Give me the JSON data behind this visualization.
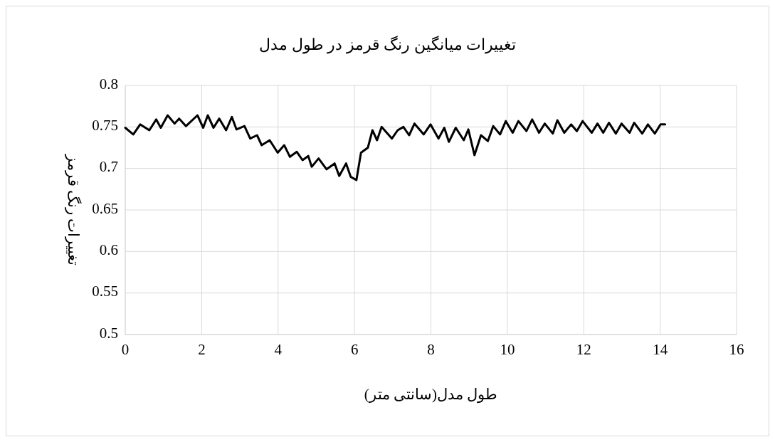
{
  "chart_data": {
    "type": "line",
    "title": "تغییرات میانگین رنگ قرمز در طول مدل",
    "xlabel": "طول مدل(سانتی متر)",
    "ylabel": "تغییرات رنگ قرمز",
    "xlim": [
      0,
      16
    ],
    "xticks": [
      0,
      2,
      4,
      6,
      8,
      10,
      12,
      14,
      16
    ],
    "ylim": [
      0.5,
      0.8
    ],
    "yticks": [
      0.5,
      0.55,
      0.6,
      0.65,
      0.7,
      0.75,
      0.8
    ],
    "grid": true,
    "marker": "none",
    "line_style": "solid",
    "series": [
      {
        "color": "#000000",
        "x": [
          0,
          0.21,
          0.39,
          0.63,
          0.81,
          0.93,
          1.11,
          1.29,
          1.41,
          1.59,
          1.89,
          2.04,
          2.16,
          2.31,
          2.46,
          2.64,
          2.79,
          2.91,
          3.12,
          3.27,
          3.45,
          3.57,
          3.78,
          3.99,
          4.16,
          4.31,
          4.49,
          4.64,
          4.79,
          4.88,
          5.06,
          5.27,
          5.48,
          5.6,
          5.78,
          5.9,
          6.05,
          6.17,
          6.35,
          6.47,
          6.59,
          6.71,
          6.98,
          7.13,
          7.28,
          7.43,
          7.57,
          7.81,
          7.99,
          8.2,
          8.35,
          8.47,
          8.65,
          8.86,
          8.98,
          9.14,
          9.31,
          9.49,
          9.63,
          9.81,
          9.96,
          10.14,
          10.29,
          10.5,
          10.65,
          10.83,
          10.98,
          11.19,
          11.31,
          11.49,
          11.67,
          11.82,
          11.97,
          12.21,
          12.36,
          12.51,
          12.66,
          12.84,
          12.99,
          13.2,
          13.32,
          13.53,
          13.68,
          13.86,
          14.01,
          14.13
        ],
        "values": [
          0.749,
          0.741,
          0.753,
          0.746,
          0.759,
          0.749,
          0.764,
          0.754,
          0.76,
          0.751,
          0.764,
          0.749,
          0.764,
          0.749,
          0.76,
          0.746,
          0.762,
          0.747,
          0.751,
          0.736,
          0.74,
          0.728,
          0.734,
          0.719,
          0.728,
          0.714,
          0.72,
          0.71,
          0.715,
          0.702,
          0.712,
          0.699,
          0.706,
          0.691,
          0.706,
          0.69,
          0.686,
          0.719,
          0.725,
          0.746,
          0.734,
          0.75,
          0.736,
          0.746,
          0.75,
          0.74,
          0.754,
          0.741,
          0.753,
          0.736,
          0.749,
          0.732,
          0.749,
          0.734,
          0.747,
          0.716,
          0.74,
          0.733,
          0.751,
          0.741,
          0.757,
          0.743,
          0.757,
          0.745,
          0.759,
          0.743,
          0.754,
          0.742,
          0.758,
          0.743,
          0.753,
          0.745,
          0.757,
          0.743,
          0.754,
          0.743,
          0.755,
          0.742,
          0.754,
          0.743,
          0.755,
          0.742,
          0.753,
          0.742,
          0.753,
          0.753
        ]
      }
    ]
  }
}
